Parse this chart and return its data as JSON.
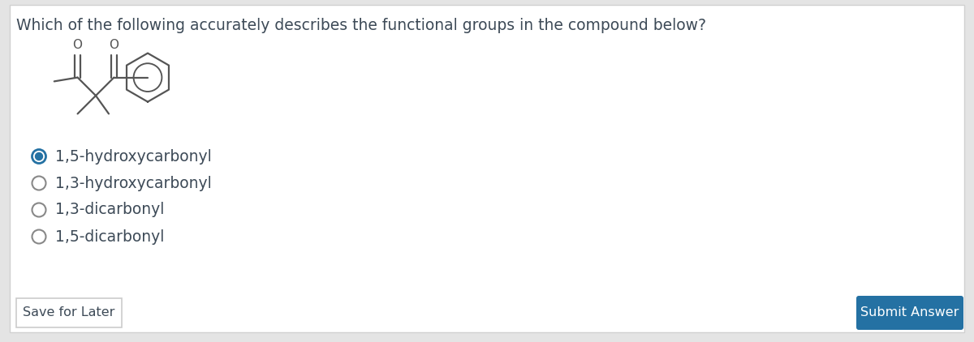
{
  "question": "Which of the following accurately describes the functional groups in the compound below?",
  "options": [
    "1,5-hydroxycarbonyl",
    "1,3-hydroxycarbonyl",
    "1,3-dicarbonyl",
    "1,5-dicarbonyl"
  ],
  "selected_index": 0,
  "bg_color": "#ffffff",
  "border_color": "#d0d0d0",
  "outer_bg": "#e4e4e4",
  "text_color": "#3d4a57",
  "question_fontsize": 13.5,
  "option_fontsize": 13.5,
  "selected_radio_color": "#2471a3",
  "unselected_radio_color": "#888888",
  "button_color": "#2471a3",
  "button_text": "Submit Answer",
  "button_text_color": "#ffffff",
  "save_button_text": "Save for Later",
  "save_button_border": "#cccccc",
  "save_button_text_color": "#3d4a57",
  "bond_color": "#555555"
}
